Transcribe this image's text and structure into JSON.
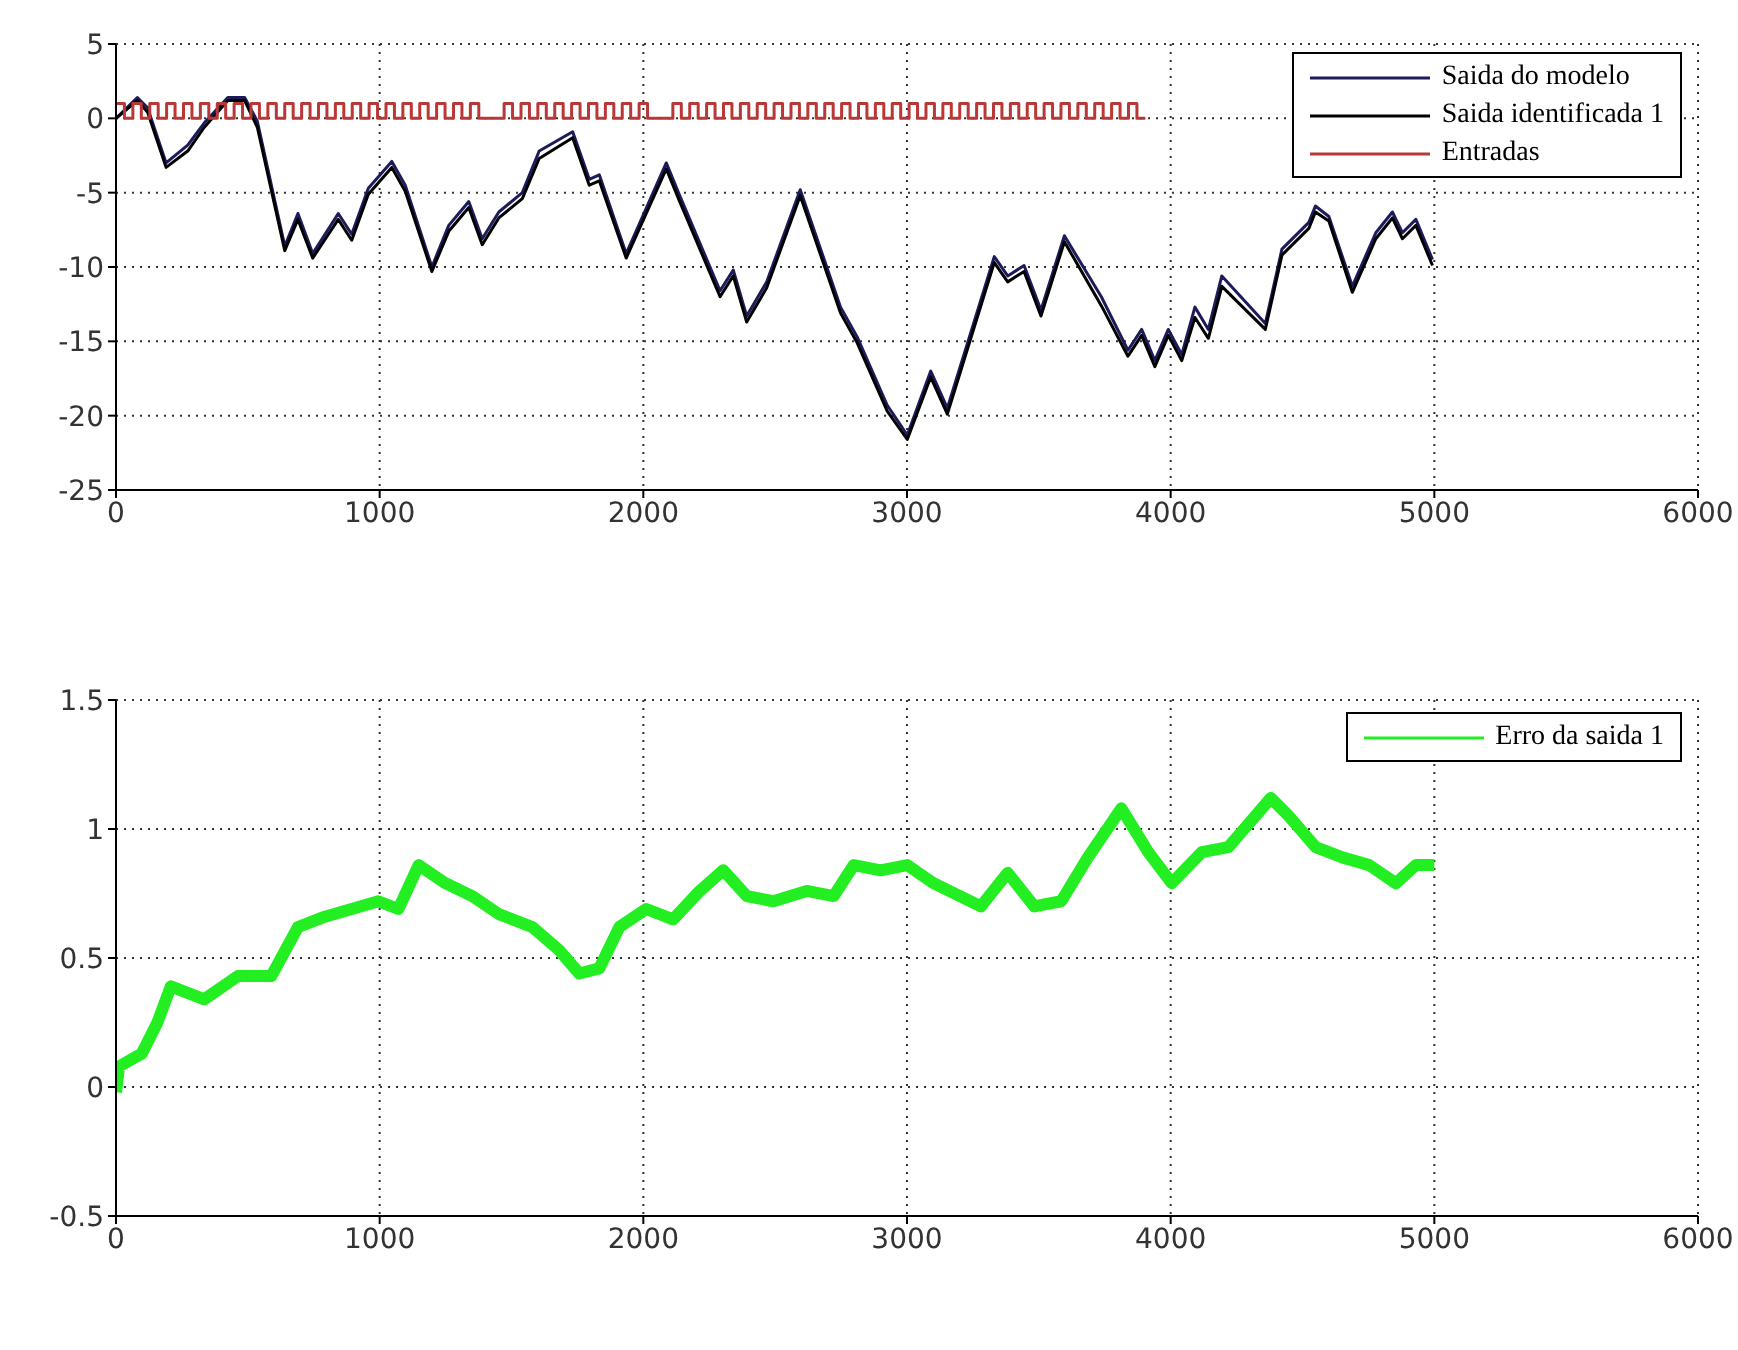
{
  "chart_data": [
    {
      "type": "line",
      "xlim": [
        0,
        6000
      ],
      "xticks": [
        0,
        1000,
        2000,
        3000,
        4000,
        5000,
        6000
      ],
      "ylim": [
        -25,
        5
      ],
      "yticks": [
        -25,
        -20,
        -15,
        -10,
        -5,
        0,
        5
      ],
      "grid": true,
      "legend": "top right",
      "marker": "none",
      "line_style": "solid",
      "series": [
        {
          "name": "Saida do modelo",
          "color": "#1c1c5c",
          "x": [
            0,
            81,
            120,
            190,
            272,
            335,
            424,
            488,
            536,
            640,
            690,
            746,
            843,
            894,
            957,
            1046,
            1097,
            1198,
            1262,
            1338,
            1389,
            1452,
            1541,
            1605,
            1732,
            1795,
            1833,
            1935,
            2087,
            2138,
            2291,
            2341,
            2392,
            2468,
            2595,
            2748,
            2811,
            2925,
            3001,
            3090,
            3153,
            3331,
            3382,
            3444,
            3508,
            3597,
            3737,
            3838,
            3890,
            3940,
            3991,
            4042,
            4092,
            4143,
            4194,
            4359,
            4422,
            4524,
            4549,
            4600,
            4689,
            4778,
            4841,
            4879,
            4930,
            4993
          ],
          "values": [
            0,
            1.4,
            0.7,
            -3.0,
            -1.8,
            -0.3,
            1.4,
            1.4,
            -0.2,
            -8.6,
            -6.4,
            -9.1,
            -6.4,
            -7.8,
            -4.7,
            -2.9,
            -4.5,
            -10.0,
            -7.2,
            -5.6,
            -8.1,
            -6.3,
            -5.0,
            -2.2,
            -0.9,
            -4.1,
            -3.8,
            -9.1,
            -3.0,
            -5.2,
            -11.6,
            -10.2,
            -13.3,
            -11.0,
            -4.8,
            -12.7,
            -14.7,
            -19.3,
            -21.3,
            -17.0,
            -19.5,
            -9.3,
            -10.6,
            -9.9,
            -12.9,
            -7.9,
            -12.0,
            -15.6,
            -14.2,
            -16.3,
            -14.2,
            -15.9,
            -12.7,
            -14.2,
            -10.6,
            -13.8,
            -8.8,
            -7.0,
            -5.9,
            -6.6,
            -11.3,
            -7.7,
            -6.3,
            -7.7,
            -6.8,
            -9.5
          ]
        },
        {
          "name": "Saida identificada 1",
          "color": "#000000",
          "x": [
            0,
            81,
            120,
            190,
            272,
            335,
            424,
            488,
            536,
            640,
            690,
            746,
            843,
            894,
            957,
            1046,
            1097,
            1198,
            1262,
            1338,
            1389,
            1452,
            1541,
            1605,
            1732,
            1795,
            1833,
            1935,
            2087,
            2138,
            2291,
            2341,
            2392,
            2468,
            2595,
            2748,
            2811,
            2925,
            3001,
            3090,
            3153,
            3331,
            3382,
            3444,
            3508,
            3597,
            3737,
            3838,
            3890,
            3940,
            3991,
            4042,
            4092,
            4143,
            4194,
            4359,
            4422,
            4524,
            4549,
            4600,
            4689,
            4778,
            4841,
            4879,
            4930,
            4993
          ],
          "values": [
            0,
            1.2,
            0.4,
            -3.3,
            -2.2,
            -0.6,
            1.2,
            1.2,
            -0.6,
            -8.9,
            -6.8,
            -9.4,
            -6.8,
            -8.2,
            -5.1,
            -3.3,
            -4.9,
            -10.3,
            -7.6,
            -6.0,
            -8.5,
            -6.7,
            -5.4,
            -2.7,
            -1.3,
            -4.5,
            -4.2,
            -9.4,
            -3.4,
            -5.6,
            -12.0,
            -10.6,
            -13.7,
            -11.4,
            -5.2,
            -13.1,
            -15.1,
            -19.7,
            -21.6,
            -17.4,
            -19.9,
            -9.7,
            -11.0,
            -10.3,
            -13.3,
            -8.3,
            -12.6,
            -16.0,
            -14.6,
            -16.7,
            -14.6,
            -16.3,
            -13.4,
            -14.8,
            -11.3,
            -14.2,
            -9.2,
            -7.4,
            -6.3,
            -6.9,
            -11.7,
            -8.1,
            -6.7,
            -8.1,
            -7.2,
            -9.9
          ]
        },
        {
          "name": "Entradas",
          "type": "step",
          "color": "#b83838",
          "x": [
            0,
            32,
            64,
            96,
            128,
            160,
            192,
            224,
            256,
            288,
            320,
            352,
            384,
            416,
            448,
            480,
            512,
            544,
            576,
            608,
            640,
            672,
            704,
            736,
            768,
            800,
            832,
            864,
            896,
            928,
            960,
            992,
            1024,
            1056,
            1088,
            1120,
            1152,
            1184,
            1216,
            1248,
            1280,
            1312,
            1344,
            1376,
            1408,
            1440,
            1472,
            1504,
            1536,
            1568,
            1600,
            1632,
            1664,
            1696,
            1728,
            1760,
            1792,
            1824,
            1856,
            1888,
            1920,
            1952,
            1984,
            2016,
            2048,
            2080,
            2112,
            2144,
            2176,
            2208,
            2240,
            2272,
            2304,
            2336,
            2368,
            2400,
            2432,
            2464,
            2496,
            2528,
            2560,
            2592,
            2624,
            2656,
            2688,
            2720,
            2752,
            2784,
            2816,
            2848,
            2880,
            2912,
            2944,
            2976,
            3008,
            3040,
            3072,
            3104,
            3136,
            3168,
            3200,
            3232,
            3264,
            3296,
            3328,
            3360,
            3392,
            3424,
            3456,
            3488,
            3520,
            3552,
            3584,
            3616,
            3648,
            3680,
            3712,
            3744,
            3776,
            3808,
            3840,
            3872,
            3904
          ],
          "values": [
            1,
            0,
            1,
            0,
            1,
            0,
            1,
            0,
            1,
            0,
            1,
            0,
            1,
            0,
            1,
            0,
            1,
            0,
            1,
            0,
            1,
            0,
            1,
            0,
            1,
            0,
            1,
            0,
            1,
            0,
            1,
            0,
            1,
            0,
            1,
            0,
            1,
            0,
            1,
            0,
            1,
            0,
            1,
            0,
            0,
            0,
            1,
            0,
            1,
            0,
            1,
            0,
            1,
            0,
            1,
            0,
            1,
            0,
            1,
            0,
            1,
            0,
            1,
            0,
            0,
            0,
            1,
            0,
            1,
            0,
            1,
            0,
            1,
            0,
            1,
            0,
            1,
            0,
            1,
            0,
            1,
            0,
            1,
            0,
            1,
            0,
            1,
            0,
            1,
            0,
            1,
            0,
            1,
            0,
            1,
            0,
            1,
            0,
            1,
            0,
            1,
            0,
            1,
            0,
            1,
            0,
            1,
            0,
            1,
            0,
            1,
            0,
            1,
            0,
            1,
            0,
            1,
            0,
            1,
            0,
            1,
            0,
            0
          ]
        }
      ]
    },
    {
      "type": "line",
      "xlim": [
        0,
        6000
      ],
      "xticks": [
        0,
        1000,
        2000,
        3000,
        4000,
        5000,
        6000
      ],
      "ylim": [
        -0.5,
        1.5
      ],
      "yticks": [
        -0.5,
        0,
        0.5,
        1,
        1.5
      ],
      "grid": true,
      "legend": "top right",
      "marker": "none",
      "line_style": "solid",
      "series": [
        {
          "name": "Erro da saida 1",
          "color": "#22ee22",
          "x": [
            0,
            12,
            98,
            157,
            208,
            335,
            462,
            589,
            690,
            792,
            894,
            995,
            1071,
            1148,
            1249,
            1351,
            1452,
            1579,
            1681,
            1757,
            1833,
            1909,
            2011,
            2113,
            2214,
            2303,
            2392,
            2493,
            2620,
            2722,
            2798,
            2900,
            3001,
            3100,
            3280,
            3382,
            3483,
            3585,
            3686,
            3813,
            3915,
            4004,
            4118,
            4219,
            4380,
            4448,
            4550,
            4651,
            4753,
            4854,
            4930,
            5000
          ],
          "values": [
            -0.02,
            0.08,
            0.13,
            0.25,
            0.39,
            0.34,
            0.43,
            0.43,
            0.62,
            0.66,
            0.69,
            0.72,
            0.69,
            0.86,
            0.79,
            0.74,
            0.67,
            0.62,
            0.53,
            0.44,
            0.46,
            0.62,
            0.69,
            0.65,
            0.76,
            0.84,
            0.74,
            0.72,
            0.76,
            0.74,
            0.86,
            0.84,
            0.86,
            0.79,
            0.7,
            0.83,
            0.7,
            0.72,
            0.89,
            1.08,
            0.91,
            0.79,
            0.91,
            0.93,
            1.12,
            1.05,
            0.93,
            0.89,
            0.86,
            0.79,
            0.86,
            0.86
          ]
        }
      ]
    }
  ]
}
